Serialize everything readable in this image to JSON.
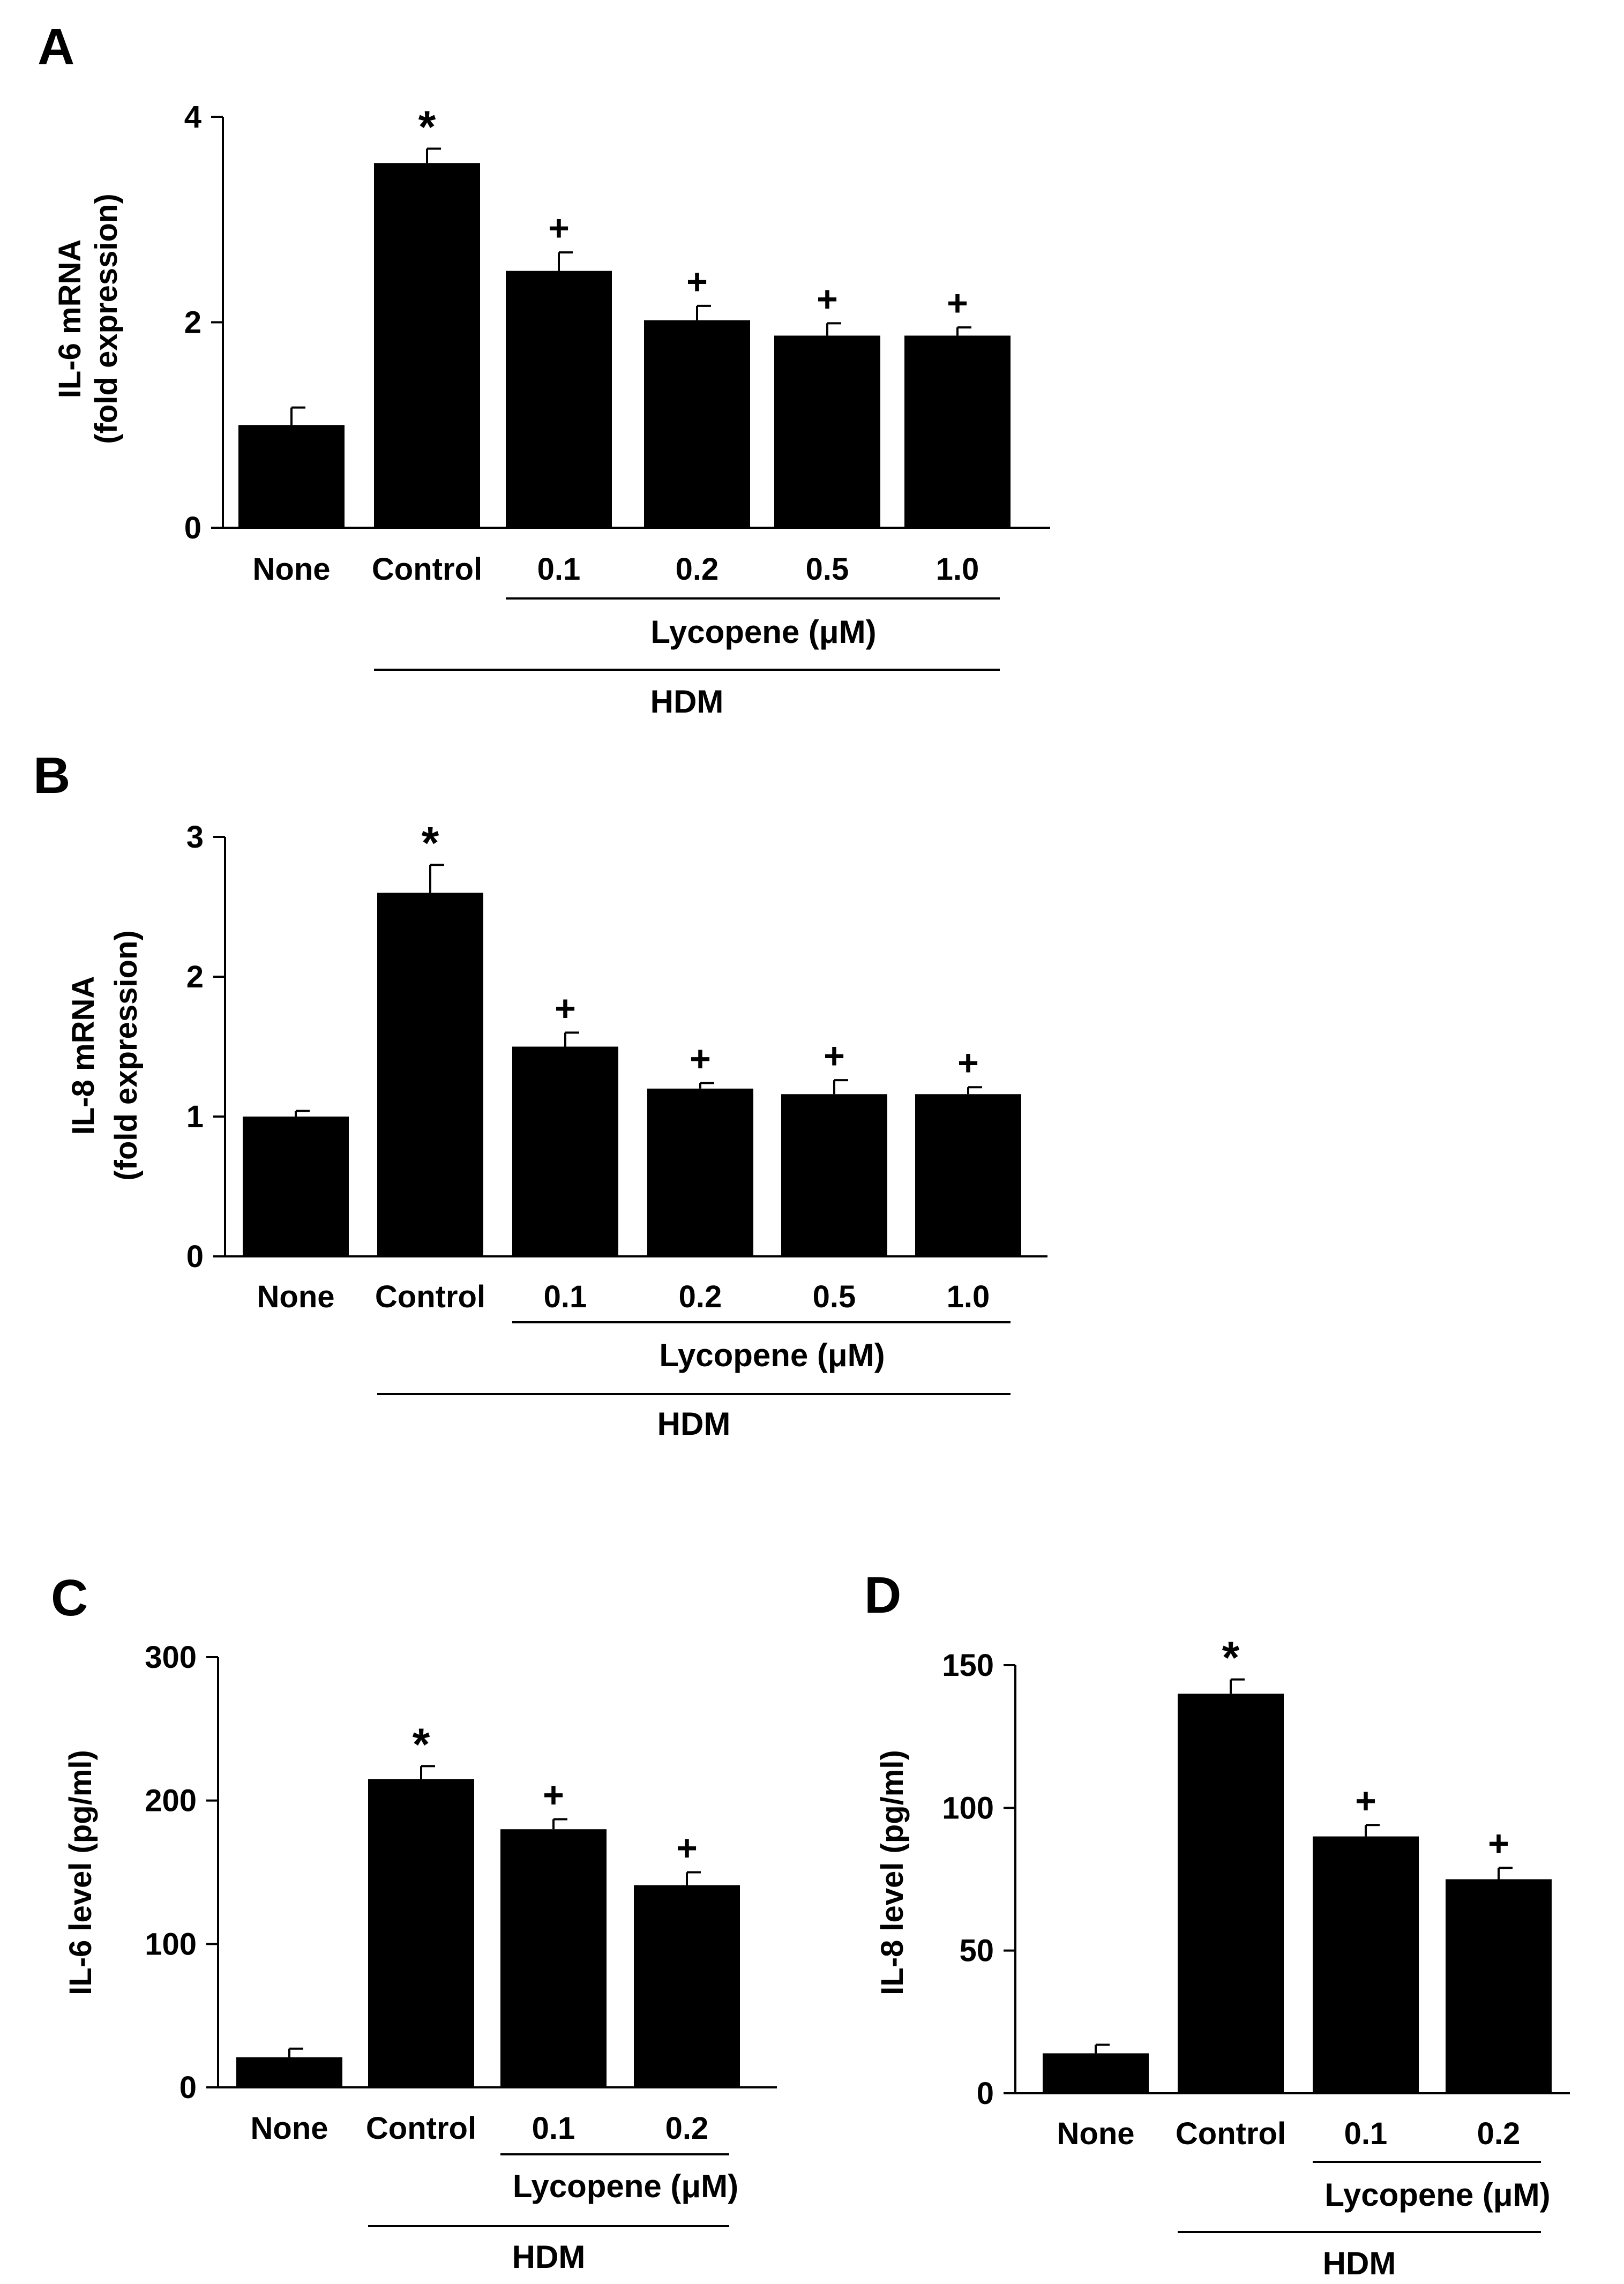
{
  "colors": {
    "bar": "#000000",
    "background": "#ffffff"
  },
  "chart_data": [
    {
      "panel_label": "A",
      "type": "bar",
      "categories": [
        "None",
        "Control",
        "0.1",
        "0.2",
        "0.5",
        "1.0"
      ],
      "values": [
        1.0,
        3.55,
        2.5,
        2.02,
        1.87,
        1.87
      ],
      "errors": [
        0.17,
        0.14,
        0.18,
        0.14,
        0.12,
        0.08
      ],
      "annotations": [
        "",
        "*",
        "+",
        "+",
        "+",
        "+"
      ],
      "ylabel": [
        "IL-6 mRNA",
        "(fold expression)"
      ],
      "ylim": [
        0,
        4
      ],
      "yticks": [
        0,
        2,
        4
      ],
      "groups": [
        {
          "label": "Lycopene (μM)",
          "from": 2,
          "to": 5
        },
        {
          "label": "HDM",
          "from": 1,
          "to": 5
        }
      ]
    },
    {
      "panel_label": "B",
      "type": "bar",
      "categories": [
        "None",
        "Control",
        "0.1",
        "0.2",
        "0.5",
        "1.0"
      ],
      "values": [
        1.0,
        2.6,
        1.5,
        1.2,
        1.16,
        1.16
      ],
      "errors": [
        0.04,
        0.2,
        0.1,
        0.04,
        0.1,
        0.05
      ],
      "annotations": [
        "",
        "*",
        "+",
        "+",
        "+",
        "+"
      ],
      "ylabel": [
        "IL-8 mRNA",
        "(fold expression)"
      ],
      "ylim": [
        0,
        3
      ],
      "yticks": [
        0,
        1,
        2,
        3
      ],
      "groups": [
        {
          "label": "Lycopene (μM)",
          "from": 2,
          "to": 5
        },
        {
          "label": "HDM",
          "from": 1,
          "to": 5
        }
      ]
    },
    {
      "panel_label": "C",
      "type": "bar",
      "categories": [
        "None",
        "Control",
        "0.1",
        "0.2"
      ],
      "values": [
        21,
        215,
        180,
        141
      ],
      "errors": [
        6,
        9,
        7,
        9
      ],
      "annotations": [
        "",
        "*",
        "+",
        "+"
      ],
      "ylabel": [
        "IL-6 level (pg/ml)"
      ],
      "ylim": [
        0,
        300
      ],
      "yticks": [
        0,
        100,
        200,
        300
      ],
      "groups": [
        {
          "label": "Lycopene (μM)",
          "from": 2,
          "to": 3
        },
        {
          "label": "HDM",
          "from": 1,
          "to": 3
        }
      ]
    },
    {
      "panel_label": "D",
      "type": "bar",
      "categories": [
        "None",
        "Control",
        "0.1",
        "0.2"
      ],
      "values": [
        14,
        140,
        90,
        75
      ],
      "errors": [
        3,
        5,
        4,
        4
      ],
      "annotations": [
        "",
        "*",
        "+",
        "+"
      ],
      "ylabel": [
        "IL-8 level (pg/ml)"
      ],
      "ylim": [
        0,
        150
      ],
      "yticks": [
        0,
        50,
        100,
        150
      ],
      "groups": [
        {
          "label": "Lycopene (μM)",
          "from": 2,
          "to": 3
        },
        {
          "label": "HDM",
          "from": 1,
          "to": 3
        }
      ]
    }
  ]
}
